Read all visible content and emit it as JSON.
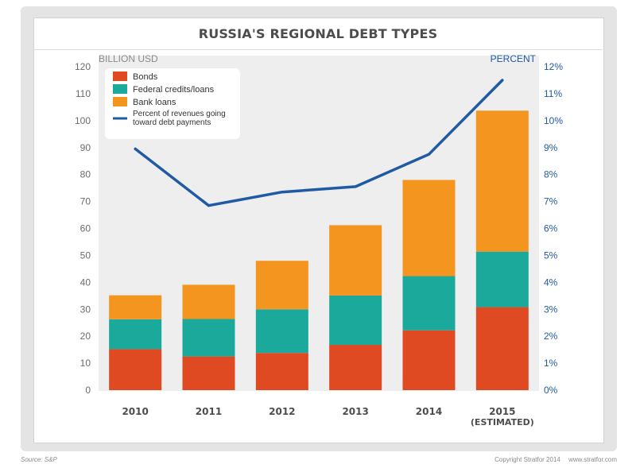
{
  "chart_data": {
    "type": "bar",
    "stacked": true,
    "title": "RUSSIA'S REGIONAL DEBT TYPES",
    "ylabel_left": "BILLION USD",
    "ylabel_right": "PERCENT",
    "categories": [
      "2010",
      "2011",
      "2012",
      "2013",
      "2014",
      "2015"
    ],
    "category_sublabels": [
      "",
      "",
      "",
      "",
      "",
      "(ESTIMATED)"
    ],
    "ylim_left": [
      0,
      120
    ],
    "yticks_left": [
      "0",
      "10",
      "20",
      "30",
      "40",
      "50",
      "60",
      "70",
      "80",
      "90",
      "100",
      "110",
      "120"
    ],
    "ylim_right": [
      0,
      12
    ],
    "yticks_right": [
      "0%",
      "1%",
      "2%",
      "3%",
      "4%",
      "5%",
      "6%",
      "7%",
      "8%",
      "9%",
      "10%",
      "11%",
      "12%"
    ],
    "series": [
      {
        "name": "Bonds",
        "kind": "bar",
        "color": "#e04a22",
        "values": [
          15.2,
          12.5,
          13.8,
          16.8,
          22.2,
          30.8
        ]
      },
      {
        "name": "Federal credits/loans",
        "kind": "bar",
        "color": "#1aa99a",
        "values": [
          11.1,
          13.9,
          16.2,
          18.3,
          20.1,
          20.6
        ]
      },
      {
        "name": "Bank loans",
        "kind": "bar",
        "color": "#f4951f",
        "values": [
          8.9,
          12.7,
          18.0,
          26.1,
          35.7,
          52.3
        ]
      },
      {
        "name": "Percent of revenues going toward debt payments",
        "legend_lines": [
          "Percent of revenues going",
          "toward debt payments"
        ],
        "kind": "line",
        "axis": "right",
        "color": "#1f5aa3",
        "values": [
          8.95,
          6.85,
          7.35,
          7.55,
          8.75,
          11.5
        ]
      }
    ],
    "legend_position": "top-left",
    "grid": false
  },
  "footer": {
    "source": "Source: S&P",
    "copyright": "Copyright Stratfor 2014",
    "website": "www.stratfor.com"
  }
}
